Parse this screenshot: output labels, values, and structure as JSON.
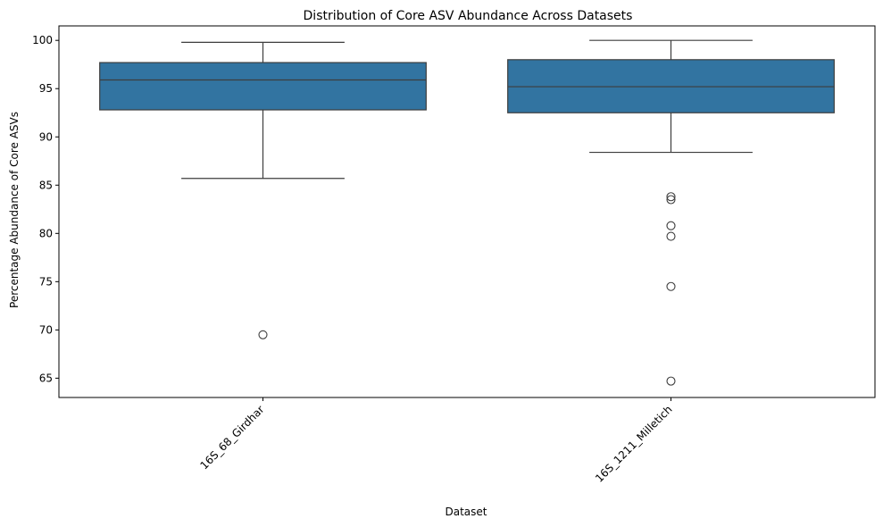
{
  "chart_data": {
    "type": "box",
    "title": "Distribution of Core ASV Abundance Across Datasets",
    "xlabel": "Dataset",
    "ylabel": "Percentage Abundance of Core ASVs",
    "ylim": [
      63,
      101.5
    ],
    "yticks": [
      65,
      70,
      75,
      80,
      85,
      90,
      95,
      100
    ],
    "categories": [
      "16S_68_Girdhar",
      "16S_1211_Milletich"
    ],
    "boxes": [
      {
        "category": "16S_68_Girdhar",
        "whisker_low": 85.7,
        "q1": 92.8,
        "median": 95.9,
        "q3": 97.7,
        "whisker_high": 99.8,
        "outliers": [
          69.5
        ]
      },
      {
        "category": "16S_1211_Milletich",
        "whisker_low": 88.4,
        "q1": 92.5,
        "median": 95.2,
        "q3": 98.0,
        "whisker_high": 100.0,
        "outliers": [
          83.8,
          83.5,
          80.8,
          79.7,
          74.5,
          64.7
        ]
      }
    ],
    "box_color": "#3274a1",
    "line_color": "#3d3d3d",
    "grid": false,
    "legend": "none"
  }
}
